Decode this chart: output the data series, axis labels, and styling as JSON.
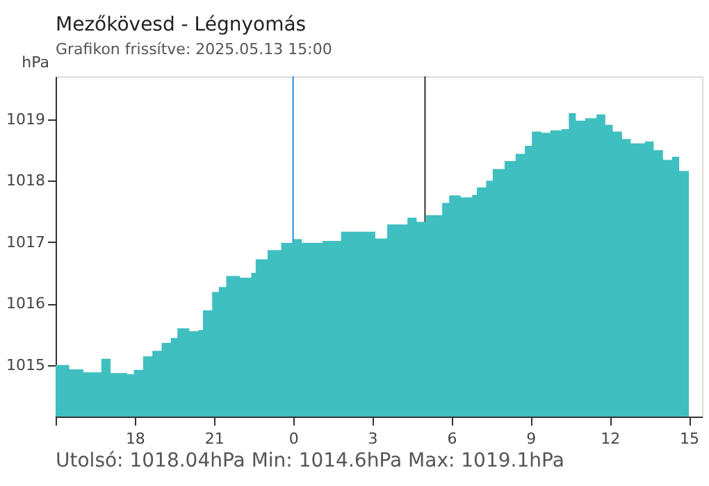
{
  "chart_data": {
    "type": "area",
    "title": "Mezőkövesd - Légnyomás",
    "subtitle": "Grafikon frissítve: 2025.05.13 15:00",
    "ylabel": "hPa",
    "annotations": [
      "Utolsó: 1018.04hPa  Min: 1014.6hPa  Max: 1019.1hPa"
    ],
    "x": [
      "2025-05-12T15:00",
      "2025-05-12T15:16",
      "2025-05-12T15:31",
      "2025-05-12T16:03",
      "2025-05-12T16:44",
      "2025-05-12T17:05",
      "2025-05-12T17:43",
      "2025-05-12T17:58",
      "2025-05-12T18:19",
      "2025-05-12T18:40",
      "2025-05-12T19:01",
      "2025-05-12T19:22",
      "2025-05-12T19:37",
      "2025-05-12T20:04",
      "2025-05-12T20:25",
      "2025-05-12T20:35",
      "2025-05-12T20:56",
      "2025-05-12T21:11",
      "2025-05-12T21:28",
      "2025-05-12T21:59",
      "2025-05-12T22:25",
      "2025-05-12T22:35",
      "2025-05-12T23:02",
      "2025-05-12T23:33",
      "2025-05-13T00:01",
      "2025-05-13T00:20",
      "2025-05-13T01:07",
      "2025-05-13T01:49",
      "2025-05-13T02:41",
      "2025-05-13T03:07",
      "2025-05-13T03:34",
      "2025-05-13T04:05",
      "2025-05-13T04:20",
      "2025-05-13T04:41",
      "2025-05-13T05:02",
      "2025-05-13T05:28",
      "2025-05-13T05:39",
      "2025-05-13T05:55",
      "2025-05-13T06:21",
      "2025-05-13T06:47",
      "2025-05-13T06:58",
      "2025-05-13T07:19",
      "2025-05-13T07:34",
      "2025-05-13T08:01",
      "2025-05-13T08:26",
      "2025-05-13T08:47",
      "2025-05-13T09:03",
      "2025-05-13T09:25",
      "2025-05-13T09:45",
      "2025-05-13T10:11",
      "2025-05-13T10:27",
      "2025-05-13T10:43",
      "2025-05-13T11:04",
      "2025-05-13T11:30",
      "2025-05-13T11:50",
      "2025-05-13T12:07",
      "2025-05-13T12:28",
      "2025-05-13T12:48",
      "2025-05-13T13:20",
      "2025-05-13T13:40",
      "2025-05-13T14:01",
      "2025-05-13T14:22",
      "2025-05-13T14:38",
      "2025-05-13T15:00"
    ],
    "series": [
      {
        "color": "#40bfc1",
        "values": [
          1015.0,
          1015.0,
          1014.93,
          1014.88,
          1015.1,
          1014.87,
          1014.85,
          1014.92,
          1015.14,
          1015.23,
          1015.36,
          1015.44,
          1015.6,
          1015.55,
          1015.57,
          1015.89,
          1016.19,
          1016.27,
          1016.45,
          1016.42,
          1016.5,
          1016.72,
          1016.87,
          1016.99,
          1017.05,
          1016.99,
          1017.02,
          1017.17,
          1017.17,
          1017.06,
          1017.29,
          1017.29,
          1017.4,
          1017.33,
          1017.44,
          1017.44,
          1017.64,
          1017.76,
          1017.73,
          1017.77,
          1017.89,
          1018.0,
          1018.19,
          1018.32,
          1018.44,
          1018.57,
          1018.8,
          1018.78,
          1018.82,
          1018.84,
          1019.1,
          1018.98,
          1019.02,
          1019.08,
          1018.91,
          1018.8,
          1018.68,
          1018.61,
          1018.64,
          1018.5,
          1018.34,
          1018.39,
          1018.16,
          1018.04
        ]
      }
    ],
    "xlim": [
      "2025-05-12T15:00",
      "2025-05-13T15:30"
    ],
    "ylim": [
      1014.16,
      1019.7
    ],
    "xticks": [
      {
        "value": "2025-05-12T15:00",
        "label": null
      },
      {
        "value": "2025-05-12T18:00",
        "label": "18"
      },
      {
        "value": "2025-05-12T21:00",
        "label": "21"
      },
      {
        "value": "2025-05-13T00:00",
        "label": "0"
      },
      {
        "value": "2025-05-13T03:00",
        "label": "3"
      },
      {
        "value": "2025-05-13T06:00",
        "label": "6"
      },
      {
        "value": "2025-05-13T09:00",
        "label": "9"
      },
      {
        "value": "2025-05-13T12:00",
        "label": "12"
      },
      {
        "value": "2025-05-13T15:00",
        "label": "15"
      }
    ],
    "yticks": [
      1015,
      1016,
      1017,
      1018,
      1019
    ],
    "ref_lines": [
      {
        "axis": "x",
        "value": "2025-05-13T00:00",
        "color": "#1e88e5"
      },
      {
        "axis": "x",
        "value": "2025-05-13T05:00",
        "color": "#333333"
      }
    ]
  }
}
